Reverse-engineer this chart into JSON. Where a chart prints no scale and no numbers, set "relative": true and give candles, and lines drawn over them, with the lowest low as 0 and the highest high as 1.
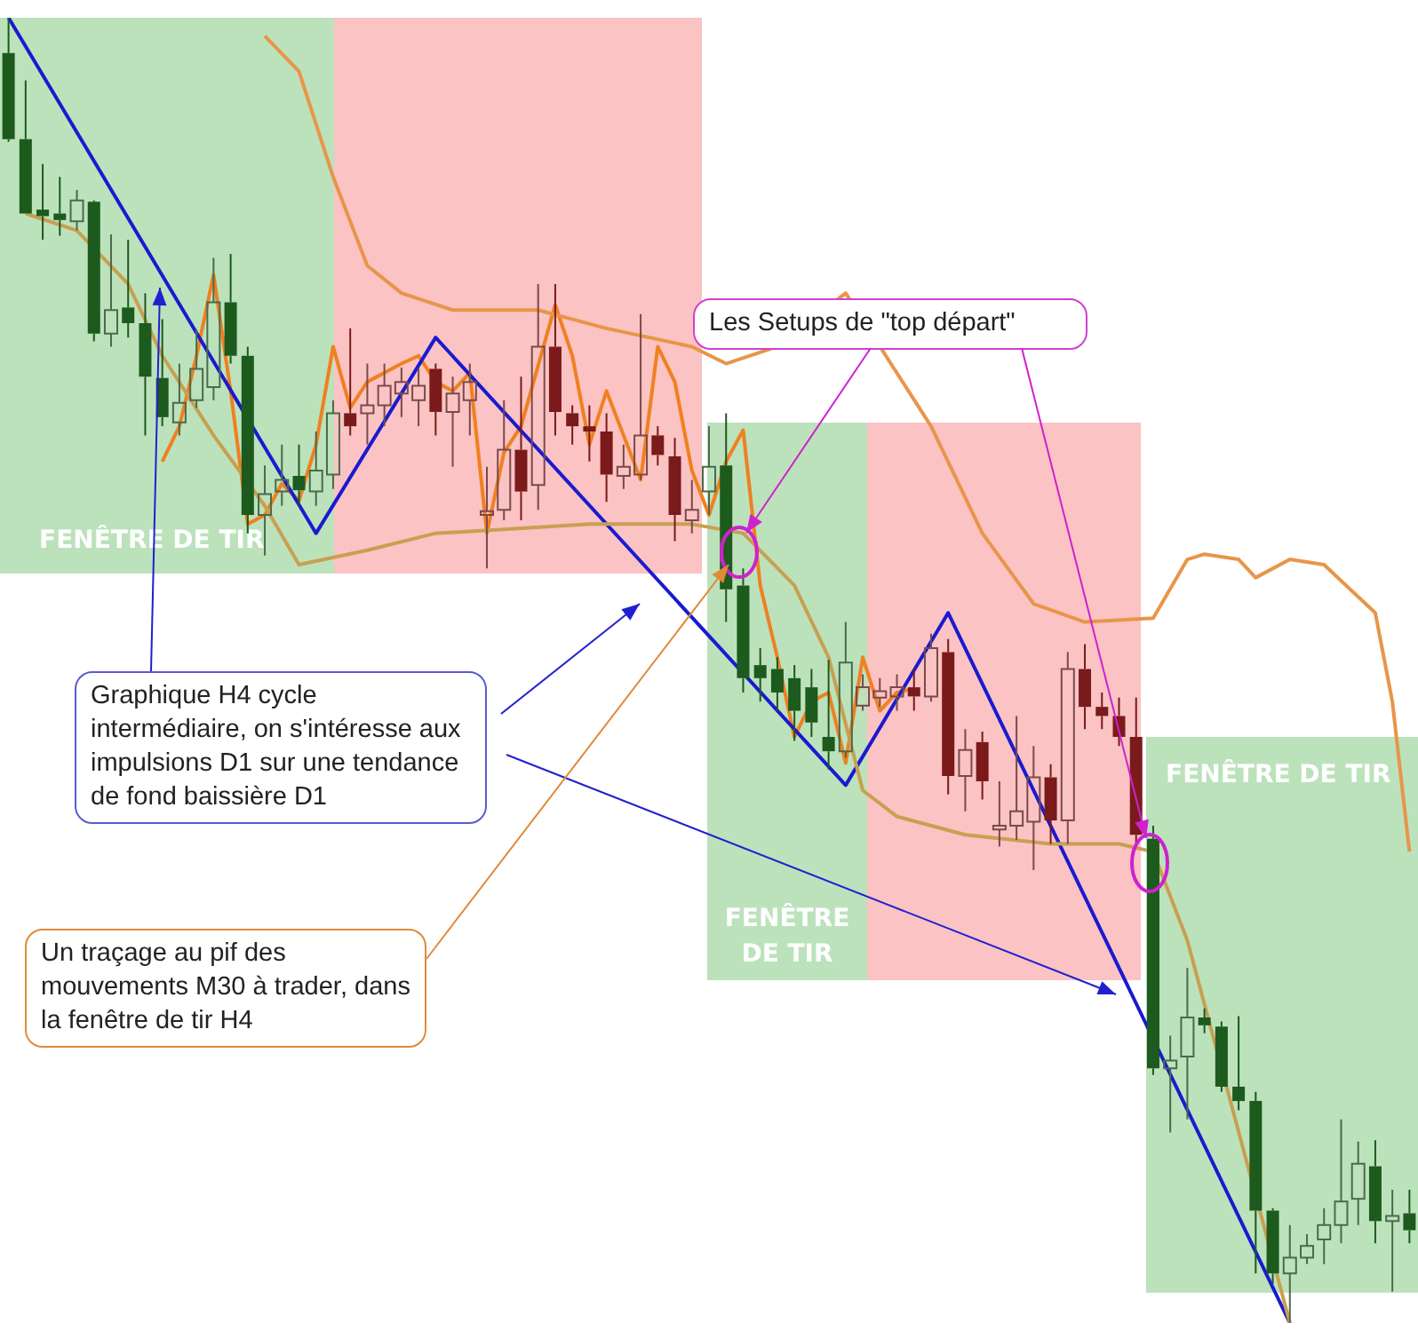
{
  "chart_data": {
    "type": "candlestick",
    "relative": true,
    "categories": [
      null,
      null,
      null,
      null,
      null,
      null,
      null,
      null,
      null,
      null,
      null,
      null,
      null,
      null,
      null,
      null,
      null,
      null,
      null,
      null,
      null,
      null,
      null,
      null,
      null,
      null,
      null,
      null,
      null,
      null,
      null,
      null,
      null,
      null,
      null,
      null,
      null,
      null,
      null,
      null,
      null,
      null,
      null,
      null,
      null,
      null,
      null,
      null,
      null,
      null,
      null,
      null,
      null,
      null,
      null,
      null,
      null,
      null,
      null,
      null,
      null,
      null,
      null,
      null,
      null,
      null,
      null,
      null,
      null,
      null,
      null,
      null,
      null,
      null,
      null,
      null,
      null,
      null,
      null,
      null,
      null,
      null,
      null
    ],
    "ohlc": [
      [
        0.973,
        1,
        0.905,
        0.907
      ],
      [
        0.907,
        0.952,
        0.85,
        0.85
      ],
      [
        0.853,
        0.888,
        0.83,
        0.848
      ],
      [
        0.85,
        0.878,
        0.833,
        0.845
      ],
      [
        0.844,
        0.868,
        0.837,
        0.86
      ],
      [
        0.859,
        0.86,
        0.752,
        0.758
      ],
      [
        0.758,
        0.834,
        0.748,
        0.776
      ],
      [
        0.778,
        0.83,
        0.755,
        0.766
      ],
      [
        0.766,
        0.789,
        0.68,
        0.725
      ],
      [
        0.724,
        0.769,
        0.687,
        0.694
      ],
      [
        0.69,
        0.735,
        0.68,
        0.705
      ],
      [
        0.707,
        0.761,
        0.701,
        0.731
      ],
      [
        0.717,
        0.816,
        0.707,
        0.782
      ],
      [
        0.782,
        0.819,
        0.735,
        0.741
      ],
      [
        0.741,
        0.748,
        0.605,
        0.619
      ],
      [
        0.619,
        0.657,
        0.588,
        0.635
      ],
      [
        0.637,
        0.673,
        0.626,
        0.646
      ],
      [
        0.649,
        0.673,
        0.626,
        0.638
      ],
      [
        0.637,
        0.683,
        0.626,
        0.653
      ],
      [
        0.65,
        0.707,
        0.639,
        0.697
      ],
      [
        0.697,
        0.762,
        0.68,
        0.687
      ],
      [
        0.697,
        0.735,
        0.673,
        0.703
      ],
      [
        0.703,
        0.735,
        0.687,
        0.718
      ],
      [
        0.712,
        0.732,
        0.694,
        0.721
      ],
      [
        0.707,
        0.732,
        0.687,
        0.718
      ],
      [
        0.731,
        0.735,
        0.68,
        0.698
      ],
      [
        0.698,
        0.725,
        0.656,
        0.712
      ],
      [
        0.707,
        0.735,
        0.68,
        0.721
      ],
      [
        0.619,
        0.656,
        0.578,
        0.622
      ],
      [
        0.623,
        0.707,
        0.615,
        0.669
      ],
      [
        0.669,
        0.725,
        0.615,
        0.637
      ],
      [
        0.642,
        0.796,
        0.623,
        0.748
      ],
      [
        0.748,
        0.796,
        0.68,
        0.698
      ],
      [
        0.697,
        0.703,
        0.673,
        0.687
      ],
      [
        0.687,
        0.703,
        0.66,
        0.683
      ],
      [
        0.683,
        0.697,
        0.629,
        0.65
      ],
      [
        0.649,
        0.673,
        0.639,
        0.656
      ],
      [
        0.65,
        0.773,
        0.646,
        0.68
      ],
      [
        0.68,
        0.687,
        0.657,
        0.665
      ],
      [
        0.664,
        0.678,
        0.599,
        0.619
      ],
      [
        0.615,
        0.646,
        0.605,
        0.623
      ],
      [
        0.637,
        0.687,
        0.619,
        0.656
      ],
      [
        0.657,
        0.697,
        0.537,
        0.562
      ],
      [
        0.565,
        0.578,
        0.483,
        0.494
      ],
      [
        0.504,
        0.517,
        0.476,
        0.494
      ],
      [
        0.501,
        0.51,
        0.469,
        0.483
      ],
      [
        0.494,
        0.504,
        0.446,
        0.469
      ],
      [
        0.487,
        0.501,
        0.449,
        0.46
      ],
      [
        0.449,
        0.508,
        0.424,
        0.438
      ],
      [
        0.438,
        0.537,
        0.433,
        0.506
      ],
      [
        0.473,
        0.497,
        0.469,
        0.487
      ],
      [
        0.479,
        0.494,
        0.472,
        0.484
      ],
      [
        0.48,
        0.497,
        0.469,
        0.487
      ],
      [
        0.487,
        0.501,
        0.469,
        0.48
      ],
      [
        0.48,
        0.528,
        0.476,
        0.517
      ],
      [
        0.514,
        0.524,
        0.405,
        0.419
      ],
      [
        0.419,
        0.455,
        0.392,
        0.439
      ],
      [
        0.445,
        0.453,
        0.401,
        0.415
      ],
      [
        0.378,
        0.415,
        0.365,
        0.381
      ],
      [
        0.381,
        0.465,
        0.37,
        0.392
      ],
      [
        0.384,
        0.442,
        0.347,
        0.418
      ],
      [
        0.418,
        0.428,
        0.367,
        0.385
      ],
      [
        0.385,
        0.514,
        0.367,
        0.501
      ],
      [
        0.501,
        0.52,
        0.455,
        0.472
      ],
      [
        0.472,
        0.483,
        0.455,
        0.465
      ],
      [
        0.465,
        0.479,
        0.442,
        0.449
      ],
      [
        0.449,
        0.479,
        0.367,
        0.374
      ],
      [
        0.371,
        0.381,
        0.19,
        0.195
      ],
      [
        0.195,
        0.22,
        0.146,
        0.201
      ],
      [
        0.204,
        0.272,
        0.156,
        0.234
      ],
      [
        0.234,
        0.241,
        0.222,
        0.228
      ],
      [
        0.227,
        0.231,
        0.177,
        0.181
      ],
      [
        0.181,
        0.235,
        0.163,
        0.17
      ],
      [
        0.17,
        0.177,
        0.038,
        0.086
      ],
      [
        0.086,
        0.088,
        0.03,
        0.038
      ],
      [
        0.038,
        0.075,
        0,
        0.05
      ],
      [
        0.05,
        0.068,
        0.045,
        0.059
      ],
      [
        0.064,
        0.088,
        0.045,
        0.075
      ],
      [
        0.075,
        0.156,
        0.061,
        0.093
      ],
      [
        0.095,
        0.139,
        0.075,
        0.122
      ],
      [
        0.12,
        0.14,
        0.061,
        0.078
      ],
      [
        0.078,
        0.102,
        0.024,
        0.082
      ],
      [
        0.084,
        0.102,
        0.061,
        0.071
      ]
    ],
    "colors": [
      "#1d5a1d",
      "#1d5a1d",
      "#1d5a1d",
      "#1d5a1d",
      "#4a6a4a",
      "#1d5a1d",
      "#4a6a4a",
      "#1d5a1d",
      "#1d5a1d",
      "#1d5a1d",
      "#4a6a4a",
      "#4a6a4a",
      "#4a6a4a",
      "#1d5a1d",
      "#1d5a1d",
      "#4a6a4a",
      "#4a6a4a",
      "#1d5a1d",
      "#4a6a4a",
      "#4a6a4a",
      "#7a1a1a",
      "#7a4a4a",
      "#7a4a4a",
      "#7a4a4a",
      "#7a4a4a",
      "#7a1a1a",
      "#7a4a4a",
      "#7a4a4a",
      "#7a4a4a",
      "#7a4a4a",
      "#7a1a1a",
      "#7a4a4a",
      "#7a1a1a",
      "#7a1a1a",
      "#7a1a1a",
      "#7a1a1a",
      "#7a4a4a",
      "#7a4a4a",
      "#7a1a1a",
      "#7a1a1a",
      "#7a4a4a",
      "#4a6a4a",
      "#1d5a1d",
      "#1d5a1d",
      "#1d5a1d",
      "#1d5a1d",
      "#1d5a1d",
      "#1d5a1d",
      "#1d5a1d",
      "#4a6a4a",
      "#7a4a4a",
      "#7a4a4a",
      "#7a4a4a",
      "#7a1a1a",
      "#7a4a4a",
      "#7a1a1a",
      "#7a4a4a",
      "#7a1a1a",
      "#7a4a4a",
      "#7a4a4a",
      "#7a4a4a",
      "#7a1a1a",
      "#7a4a4a",
      "#7a1a1a",
      "#7a1a1a",
      "#7a1a1a",
      "#7a1a1a",
      "#1d5a1d",
      "#4a6a4a",
      "#4a6a4a",
      "#1d5a1d",
      "#1d5a1d",
      "#1d5a1d",
      "#1d5a1d",
      "#1d5a1d",
      "#4a6a4a",
      "#4a6a4a",
      "#4a6a4a",
      "#4a6a4a",
      "#4a6a4a",
      "#1d5a1d",
      "#4a6a4a",
      "#1d5a1d"
    ],
    "series": [
      {
        "type": "line",
        "color": "#e8954a",
        "values": [
          null,
          null,
          null,
          null,
          null,
          null,
          null,
          null,
          null,
          null,
          null,
          null,
          null,
          null,
          null,
          0.986,
          null,
          0.959,
          null,
          0.878,
          null,
          0.81,
          null,
          0.789,
          null,
          null,
          0.776,
          null,
          null,
          null,
          null,
          0.776,
          null,
          null,
          null,
          0.762,
          null,
          null,
          null,
          null,
          0.748,
          null,
          0.735,
          null,
          null,
          0.748,
          null,
          null,
          null,
          0.789,
          null,
          null,
          null,
          null,
          0.687,
          null,
          null,
          0.605,
          null,
          null,
          0.551,
          null,
          null,
          0.537,
          null,
          null,
          null,
          0.54,
          null,
          0.585,
          0.589,
          null,
          0.585,
          0.571,
          null,
          0.585,
          null,
          0.581,
          null,
          null,
          0.544,
          0.476,
          0.361
        ]
      },
      {
        "type": "line",
        "color": "#c8a050",
        "values": [
          null,
          0.85,
          null,
          null,
          0.837,
          null,
          null,
          0.796,
          null,
          0.741,
          null,
          null,
          0.68,
          null,
          null,
          0.626,
          null,
          0.581,
          null,
          null,
          null,
          0.592,
          null,
          null,
          null,
          0.605,
          null,
          null,
          null,
          0.608,
          null,
          null,
          null,
          null,
          0.612,
          null,
          null,
          null,
          null,
          null,
          0.612,
          null,
          null,
          0.605,
          null,
          null,
          0.565,
          null,
          0.51,
          null,
          0.408,
          null,
          0.388,
          null,
          null,
          null,
          0.374,
          null,
          null,
          null,
          null,
          0.367,
          null,
          null,
          null,
          0.367,
          null,
          0.361,
          null,
          0.293,
          null,
          null,
          null,
          null,
          null,
          0,
          null,
          null,
          null,
          null,
          null,
          null,
          null
        ]
      },
      {
        "type": "line",
        "color": "#1a1ad0",
        "values": [
          1,
          null,
          null,
          null,
          null,
          null,
          null,
          null,
          null,
          null,
          null,
          null,
          null,
          null,
          null,
          null,
          null,
          null,
          0.605,
          null,
          null,
          null,
          null,
          null,
          null,
          0.755,
          null,
          null,
          null,
          null,
          null,
          null,
          null,
          null,
          null,
          null,
          null,
          null,
          null,
          null,
          null,
          null,
          null,
          null,
          null,
          null,
          null,
          null,
          null,
          0.412,
          null,
          null,
          null,
          null,
          null,
          0.544,
          null,
          null,
          null,
          null,
          null,
          null,
          null,
          null,
          null,
          null,
          null,
          null,
          null,
          null,
          null,
          null,
          null,
          null,
          null,
          0,
          null,
          null,
          null,
          null,
          null,
          null,
          null
        ]
      },
      {
        "type": "line",
        "color": "#f08020",
        "values": [
          null,
          null,
          null,
          null,
          null,
          null,
          null,
          null,
          null,
          0.66,
          0.687,
          0.741,
          0.803,
          0.714,
          0.612,
          0.619,
          0.643,
          0.63,
          0.673,
          0.748,
          0.701,
          0.721,
          null,
          0.735,
          0.741,
          0.721,
          0.714,
          0.728,
          0.605,
          0.667,
          0.687,
          null,
          0.78,
          0.741,
          0.673,
          0.714,
          0.68,
          0.646,
          0.748,
          0.721,
          0.653,
          0.619,
          0.66,
          0.684,
          0.565,
          0.51,
          0.449,
          0.476,
          0.483,
          0.429,
          0.51,
          0.469,
          0.483,
          0.486,
          null,
          null,
          null,
          null,
          null,
          null,
          null,
          null,
          null,
          null,
          null,
          null,
          null,
          null,
          null,
          null,
          null,
          null,
          null,
          null,
          null,
          null,
          null,
          null,
          null,
          null,
          null,
          null,
          null
        ]
      }
    ],
    "annotations": [
      "Les Setups de \"top départ\"",
      "Graphique H4 cycle intermédiaire, on s'intéresse aux impulsions D1 sur une tendance de fond baissière D1",
      "Un traçage au pif des mouvements M30 à trader, dans la fenêtre de tir H4",
      "FENÊTRE DE TIR",
      "FENÊTRE DE TIR",
      "FENÊTRE DE TIR"
    ]
  }
}
